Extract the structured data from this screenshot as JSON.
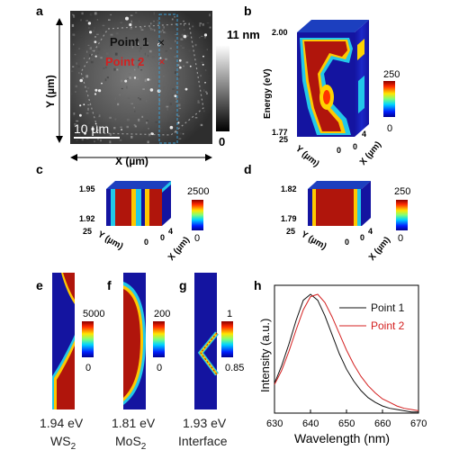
{
  "colors": {
    "point1": "#111111",
    "point2": "#d42020",
    "dashed_box": "#3a9fd6",
    "map_red": "#b0150c",
    "map_blue": "#1414a0"
  },
  "panels": {
    "a": {
      "letter": "a",
      "point1": "Point 1",
      "point2": "Point 2",
      "scalebar": "10 µm",
      "xlabel": "X (µm)",
      "ylabel": "Y (µm)",
      "colorbar_max": "11 nm",
      "colorbar_min": "0"
    },
    "b": {
      "letter": "b",
      "z_top": "2.00",
      "z_bottom": "1.77",
      "z_label": "Energy (eV)",
      "y_tick": "25",
      "y_label": "Y (µm)",
      "x_tick0": "0",
      "x_tick1": "0",
      "x_tick2": "4",
      "x_label": "X (µm)",
      "cb_max": "250",
      "cb_min": "0"
    },
    "c": {
      "letter": "c",
      "z_top": "1.95",
      "z_bottom": "1.92",
      "y_tick": "25",
      "y_label": "Y (µm)",
      "x_tick0": "0",
      "x_tick1": "0",
      "x_tick2": "4",
      "x_label": "X (µm)",
      "cb_max": "2500",
      "cb_min": "0"
    },
    "d": {
      "letter": "d",
      "z_top": "1.82",
      "z_bottom": "1.79",
      "y_tick": "25",
      "y_label": "Y (µm)",
      "x_tick0": "0",
      "x_tick1": "0",
      "x_tick2": "4",
      "x_label": "X (µm)",
      "cb_max": "250",
      "cb_min": "0"
    },
    "e": {
      "letter": "e",
      "cb_max": "5000",
      "cb_min": "0",
      "energy": "1.94 eV",
      "material": "WS",
      "sub": "2"
    },
    "f": {
      "letter": "f",
      "cb_max": "200",
      "cb_min": "0",
      "energy": "1.81 eV",
      "material": "MoS",
      "sub": "2"
    },
    "g": {
      "letter": "g",
      "cb_max": "1",
      "cb_min": "0.85",
      "energy": "1.93 eV",
      "material": "Interface"
    },
    "h": {
      "letter": "h"
    }
  },
  "chart_data": {
    "type": "line",
    "xlabel": "Wavelength (nm)",
    "ylabel": "Intensity (a.u.)",
    "xlim": [
      630,
      670
    ],
    "xticks": [
      "630",
      "640",
      "650",
      "660",
      "670"
    ],
    "legend_position": "top-right",
    "series": [
      {
        "name": "Point 1",
        "color": "#111111",
        "x": [
          630,
          632,
          634,
          636,
          638,
          640,
          642,
          644,
          646,
          648,
          650,
          652,
          654,
          656,
          658,
          660,
          662,
          664,
          666,
          668,
          670
        ],
        "y": [
          0.25,
          0.4,
          0.58,
          0.78,
          0.95,
          1.0,
          0.95,
          0.82,
          0.66,
          0.5,
          0.37,
          0.27,
          0.19,
          0.13,
          0.09,
          0.06,
          0.04,
          0.03,
          0.02,
          0.01,
          0.01
        ]
      },
      {
        "name": "Point 2",
        "color": "#d42020",
        "x": [
          630,
          632,
          634,
          636,
          638,
          640,
          642,
          644,
          646,
          648,
          650,
          652,
          654,
          656,
          658,
          660,
          662,
          664,
          666,
          668,
          670
        ],
        "y": [
          0.24,
          0.36,
          0.52,
          0.7,
          0.87,
          0.98,
          1.0,
          0.93,
          0.81,
          0.67,
          0.53,
          0.41,
          0.31,
          0.23,
          0.17,
          0.12,
          0.09,
          0.06,
          0.04,
          0.03,
          0.02
        ]
      }
    ]
  }
}
